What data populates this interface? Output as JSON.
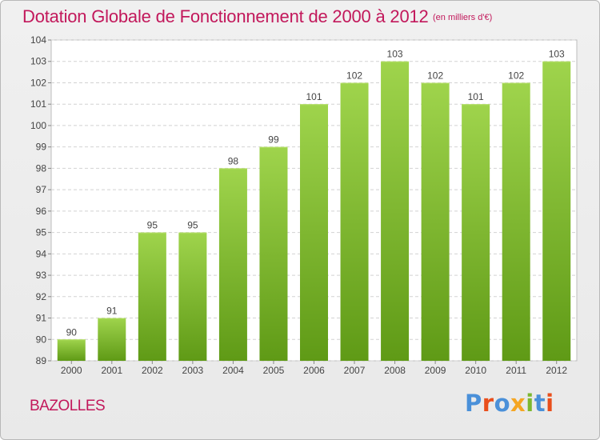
{
  "chart_data": {
    "type": "bar",
    "title": "Dotation Globale de Fonctionnement de 2000 à 2012",
    "subtitle": "(en milliers d'€)",
    "categories": [
      "2000",
      "2001",
      "2002",
      "2003",
      "2004",
      "2005",
      "2006",
      "2007",
      "2008",
      "2009",
      "2010",
      "2011",
      "2012"
    ],
    "values": [
      90,
      91,
      95,
      95,
      98,
      99,
      101,
      102,
      103,
      102,
      101,
      102,
      103
    ],
    "data_labels": [
      "90",
      "91",
      "95",
      "95",
      "98",
      "99",
      "101",
      "102",
      "103",
      "102",
      "101",
      "102",
      "103"
    ],
    "ylim": [
      89,
      104
    ],
    "yticks": [
      "89",
      "90",
      "91",
      "92",
      "93",
      "94",
      "95",
      "96",
      "97",
      "98",
      "99",
      "100",
      "101",
      "102",
      "103",
      "104"
    ],
    "grid": true,
    "xlabel": "",
    "ylabel": "",
    "colors": {
      "bar_top": "#9fd44c",
      "bar_bottom": "#5f9a16",
      "title": "#c2185b",
      "grid": "#d2d2d2"
    }
  },
  "footer": {
    "commune": "BAZOLLES",
    "logo_text": "Proxiti",
    "logo_colors": [
      "#4a90d9",
      "#e94e1b",
      "#4a90d9",
      "#f5a623",
      "#7cb82f",
      "#4a90d9",
      "#e94e1b"
    ]
  }
}
